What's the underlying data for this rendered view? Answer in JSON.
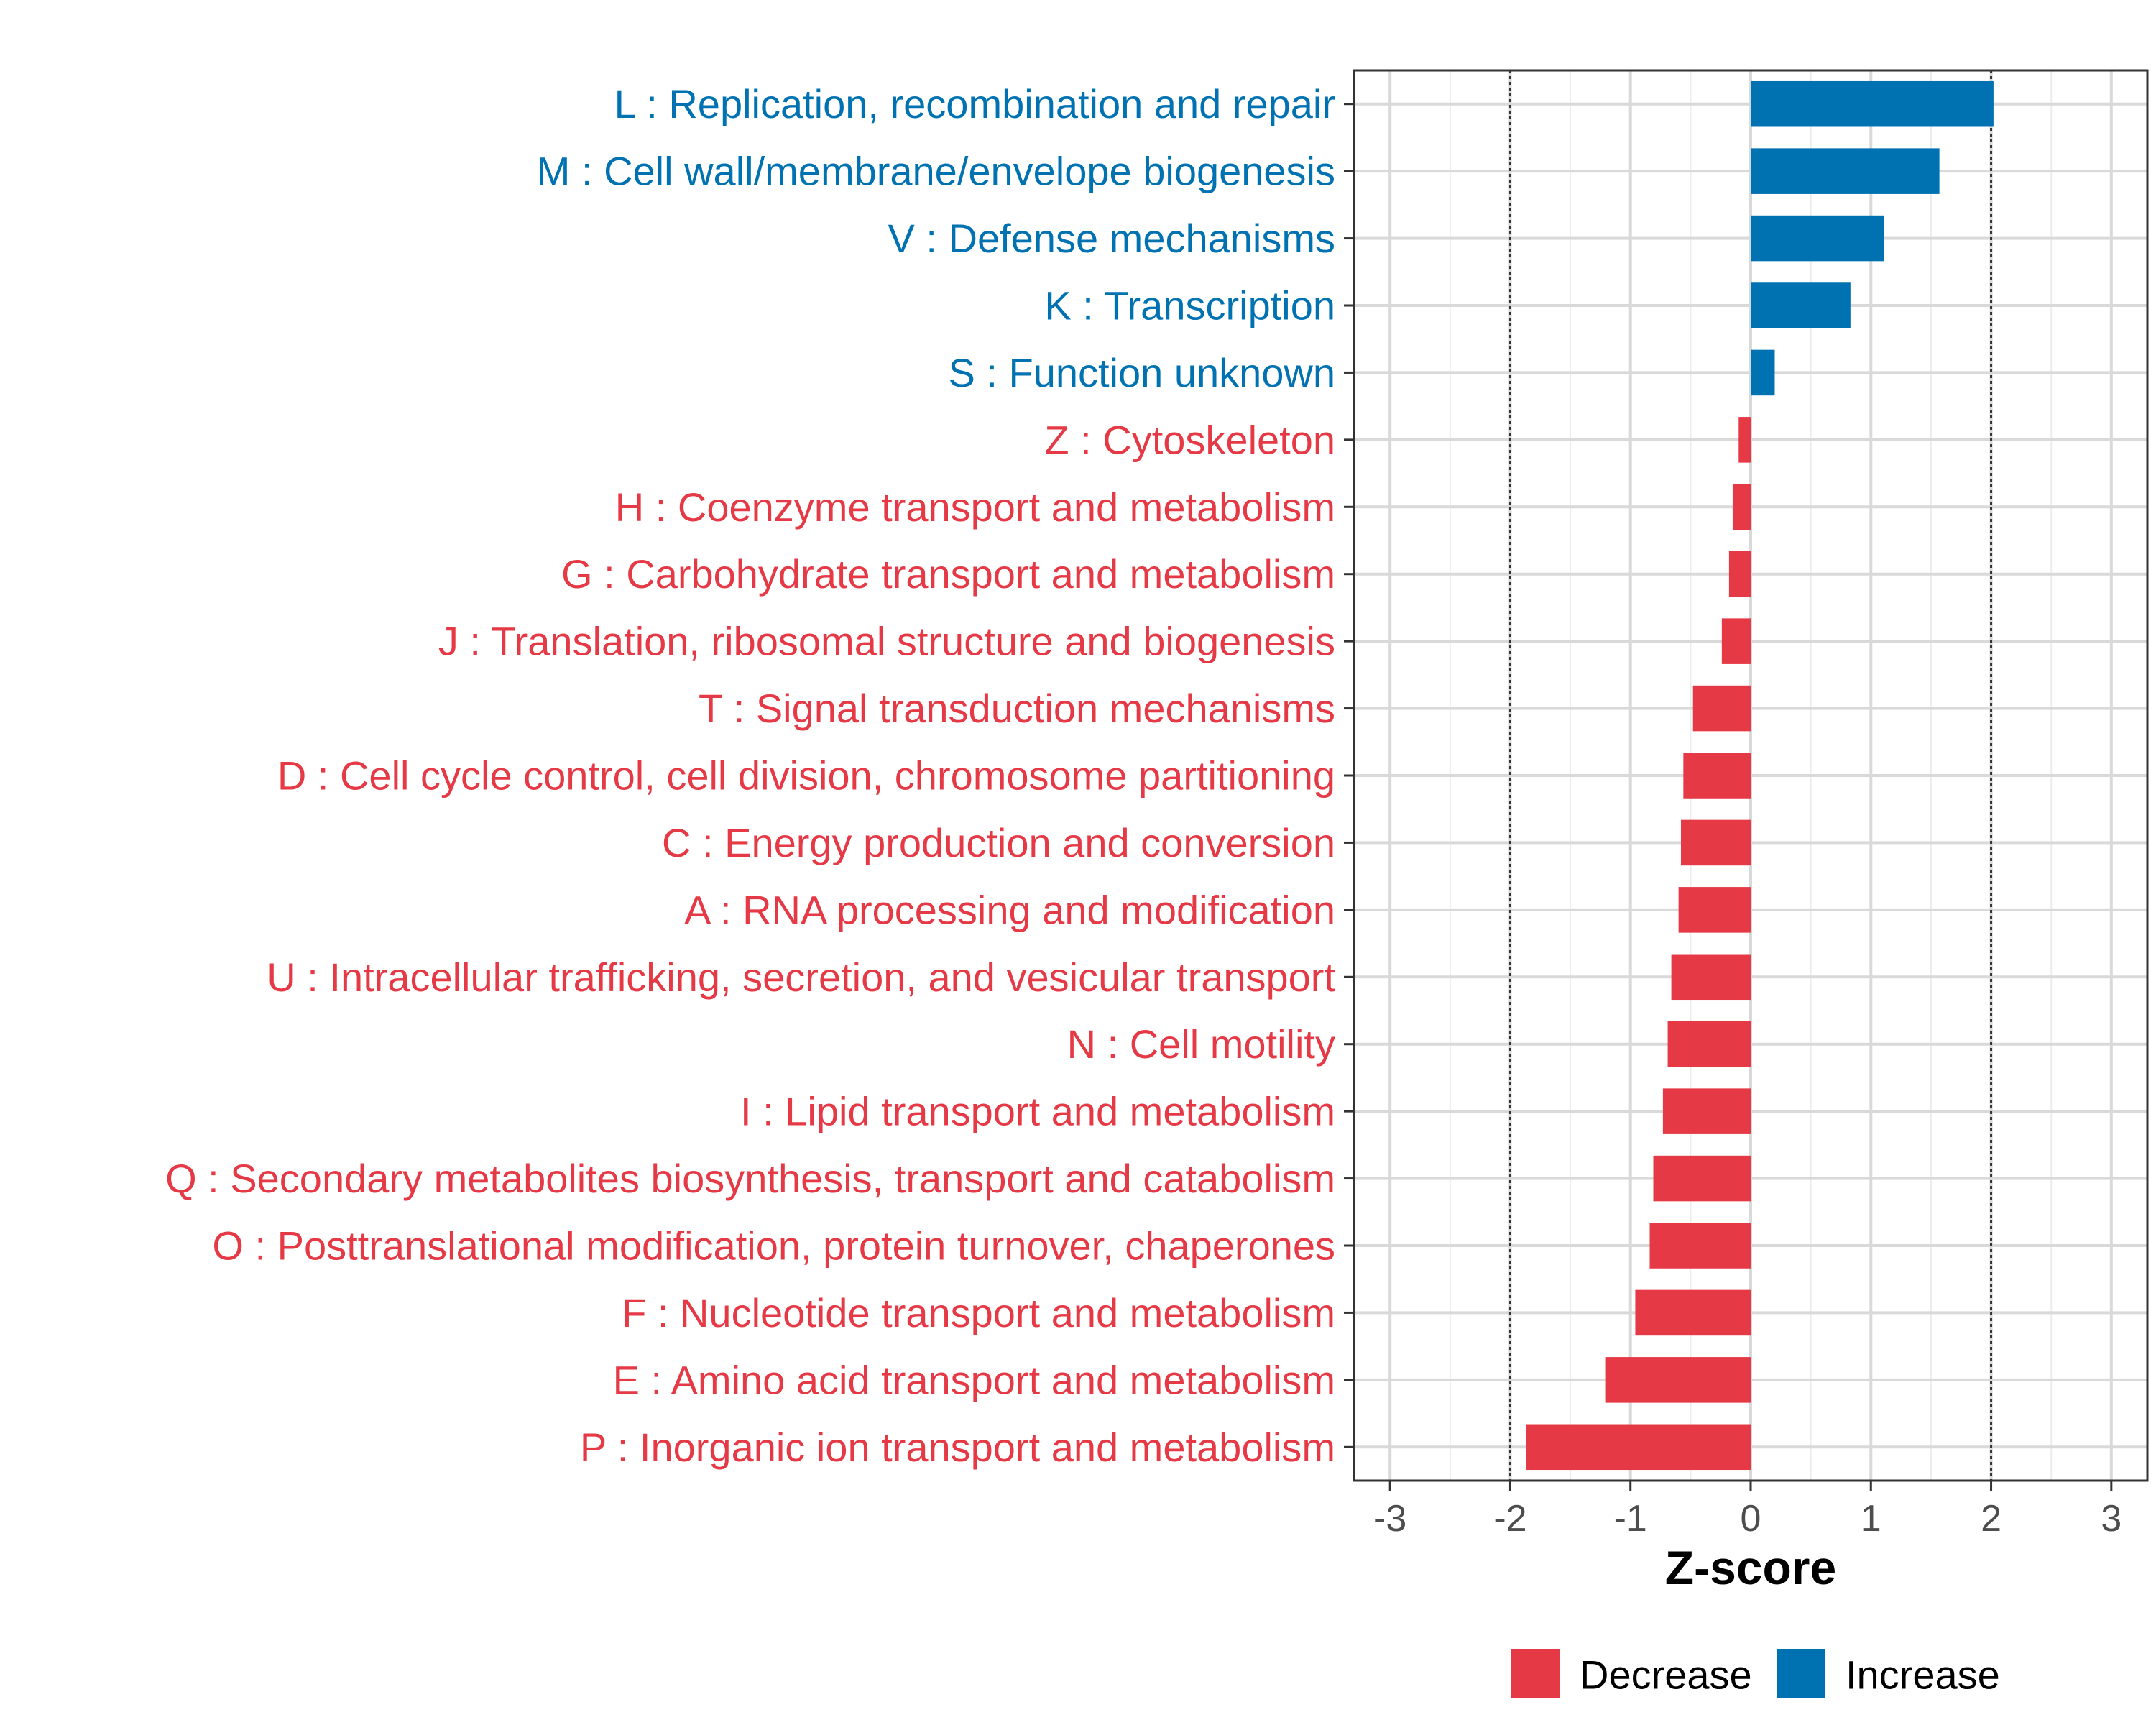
{
  "chart_data": {
    "type": "bar",
    "orientation": "horizontal",
    "xlabel": "Z-score",
    "xlim": [
      -3.3,
      3.3
    ],
    "xticks": [
      -3,
      -2,
      -1,
      0,
      1,
      2,
      3
    ],
    "xtick_labels": [
      "-3",
      "-2",
      "-1",
      "0",
      "1",
      "2",
      "3"
    ],
    "threshold_lines": [
      -2,
      2
    ],
    "grid": true,
    "legend_position": "bottom",
    "colors": {
      "Decrease": "#e63946",
      "Increase": "#0072b2"
    },
    "legend": [
      {
        "name": "Decrease",
        "color": "#e63946"
      },
      {
        "name": "Increase",
        "color": "#0072b2"
      }
    ],
    "categories": [
      "L : Replication, recombination and repair",
      "M : Cell wall/membrane/envelope biogenesis",
      "V : Defense mechanisms",
      "K : Transcription",
      "S : Function unknown",
      "Z : Cytoskeleton",
      "H : Coenzyme transport and metabolism",
      "G : Carbohydrate transport and metabolism",
      "J : Translation, ribosomal structure and biogenesis",
      "T : Signal transduction mechanisms",
      "D : Cell cycle control, cell division, chromosome partitioning",
      "C : Energy production and conversion",
      "A : RNA processing and modification",
      "U : Intracellular trafficking, secretion, and vesicular transport",
      "N : Cell motility",
      "I : Lipid transport and metabolism",
      "Q : Secondary metabolites biosynthesis, transport and catabolism",
      "O : Posttranslational modification, protein turnover, chaperones",
      "F : Nucleotide transport and metabolism",
      "E : Amino acid transport and metabolism",
      "P : Inorganic ion transport and metabolism"
    ],
    "values": [
      2.02,
      1.57,
      1.11,
      0.83,
      0.2,
      -0.1,
      -0.15,
      -0.18,
      -0.24,
      -0.48,
      -0.56,
      -0.58,
      -0.6,
      -0.66,
      -0.69,
      -0.73,
      -0.81,
      -0.84,
      -0.96,
      -1.21,
      -1.87
    ],
    "groups": [
      "Increase",
      "Increase",
      "Increase",
      "Increase",
      "Increase",
      "Decrease",
      "Decrease",
      "Decrease",
      "Decrease",
      "Decrease",
      "Decrease",
      "Decrease",
      "Decrease",
      "Decrease",
      "Decrease",
      "Decrease",
      "Decrease",
      "Decrease",
      "Decrease",
      "Decrease",
      "Decrease"
    ]
  }
}
